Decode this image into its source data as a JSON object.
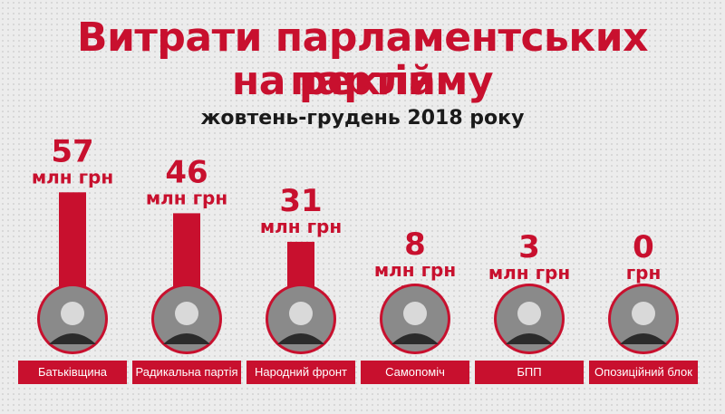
{
  "header": {
    "title_line1": "Витрати парламентських партій",
    "title_line2": "на рекламу",
    "subtitle": "жовтень-грудень 2018 року"
  },
  "colors": {
    "accent": "#c8102e",
    "background": "#ececec",
    "text": "#1a1a1a"
  },
  "chart_data": {
    "type": "bar",
    "categories": [
      "Батьківщина",
      "Радикальна партія",
      "Народний фронт",
      "Самопоміч",
      "БПП",
      "Опозиційний блок"
    ],
    "values": [
      57,
      46,
      31,
      8,
      3,
      0
    ],
    "value_labels": [
      "57",
      "46",
      "31",
      "8",
      "3",
      "0"
    ],
    "unit_labels": [
      "млн грн",
      "млн грн",
      "млн грн",
      "млн грн",
      "млн грн",
      "грн"
    ],
    "avatar_icons": [
      "portrait-photo",
      "portrait-photo",
      "portrait-photo",
      "portrait-photo",
      "portrait-photo",
      "portrait-photo"
    ],
    "title": "Витрати парламентських партій на рекламу",
    "subtitle": "жовтень-грудень 2018 року",
    "xlabel": "",
    "ylabel": "",
    "grid": false
  }
}
